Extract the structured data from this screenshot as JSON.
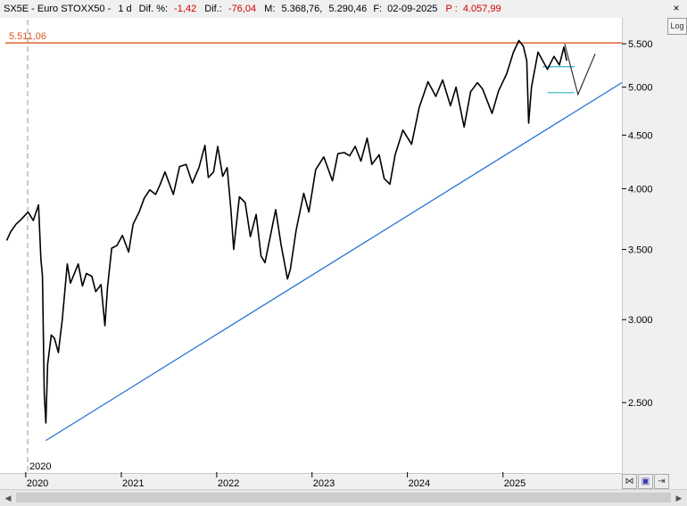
{
  "header": {
    "symbol": "SX5E - Euro STOXX50 -",
    "period": "1 d",
    "dif_pct_label": "Dif. %:",
    "dif_pct_value": "-1,42",
    "dif_label": "Dif.:",
    "dif_value": "-76,04",
    "max_label": "M:",
    "max_value": "5.368,76",
    "min_value": "5.290,46",
    "date_label": "F:",
    "date_value": "02-09-2025",
    "p_label": "P :",
    "p_value": "4.057,99",
    "close_icon": "close-icon"
  },
  "log_button": "Log",
  "toolbar": {
    "icons": [
      "chart-mode-icon",
      "save-icon",
      "export-icon"
    ]
  },
  "colors": {
    "price": "#000000",
    "resistance": "#d9571b",
    "trendline": "#1f6fd1",
    "target": "#2bb3c0",
    "header_red": "#d00000"
  },
  "chart_data": {
    "type": "line",
    "title": "",
    "y_scale": "log",
    "ylim": [
      2150,
      5800
    ],
    "y_ticks": [
      2500,
      3000,
      3500,
      4000,
      4500,
      5000,
      5500
    ],
    "y_tick_labels": [
      "2.500",
      "3.000",
      "3.500",
      "4.000",
      "4.500",
      "5.000",
      "5.500"
    ],
    "x_tick_labels": [
      "2020",
      "2021",
      "2022",
      "2023",
      "2024",
      "2025"
    ],
    "x_start_label": "2020",
    "xlim": [
      "2019-10-15",
      "2026-04-01"
    ],
    "x_ticks": [
      "2020-01-01",
      "2021-01-01",
      "2022-01-01",
      "2023-01-01",
      "2024-01-01",
      "2025-01-01"
    ],
    "resistance": {
      "value": 5511.06,
      "label": "5.511,06"
    },
    "trendline": {
      "from": [
        "2020-03-18",
        2300
      ],
      "to": [
        "2026-04-01",
        5050
      ]
    },
    "projection": [
      [
        "2025-08-25",
        5500
      ],
      [
        "2025-10-15",
        4920
      ],
      [
        "2025-12-20",
        5380
      ]
    ],
    "targets": [
      {
        "from": "2025-06-01",
        "to": "2025-10-01",
        "value": 5230
      },
      {
        "from": "2025-06-20",
        "to": "2025-10-01",
        "value": 4940
      }
    ],
    "series": [
      {
        "values": [
          [
            "2019-10-20",
            3570
          ],
          [
            "2019-11-05",
            3640
          ],
          [
            "2019-11-25",
            3700
          ],
          [
            "2019-12-15",
            3740
          ],
          [
            "2020-01-10",
            3800
          ],
          [
            "2020-01-30",
            3730
          ],
          [
            "2020-02-19",
            3860
          ],
          [
            "2020-02-28",
            3430
          ],
          [
            "2020-03-05",
            3300
          ],
          [
            "2020-03-12",
            2550
          ],
          [
            "2020-03-18",
            2390
          ],
          [
            "2020-03-25",
            2720
          ],
          [
            "2020-04-08",
            2900
          ],
          [
            "2020-04-20",
            2880
          ],
          [
            "2020-05-05",
            2790
          ],
          [
            "2020-05-20",
            3000
          ],
          [
            "2020-06-08",
            3390
          ],
          [
            "2020-06-20",
            3250
          ],
          [
            "2020-07-20",
            3390
          ],
          [
            "2020-08-05",
            3230
          ],
          [
            "2020-08-20",
            3320
          ],
          [
            "2020-09-10",
            3300
          ],
          [
            "2020-09-25",
            3190
          ],
          [
            "2020-10-15",
            3240
          ],
          [
            "2020-10-30",
            2960
          ],
          [
            "2020-11-09",
            3220
          ],
          [
            "2020-11-25",
            3510
          ],
          [
            "2020-12-15",
            3530
          ],
          [
            "2021-01-05",
            3610
          ],
          [
            "2021-01-29",
            3480
          ],
          [
            "2021-02-15",
            3700
          ],
          [
            "2021-03-10",
            3800
          ],
          [
            "2021-03-30",
            3920
          ],
          [
            "2021-04-20",
            3990
          ],
          [
            "2021-05-12",
            3950
          ],
          [
            "2021-05-30",
            4040
          ],
          [
            "2021-06-17",
            4150
          ],
          [
            "2021-07-19",
            3950
          ],
          [
            "2021-08-12",
            4200
          ],
          [
            "2021-09-06",
            4220
          ],
          [
            "2021-09-30",
            4050
          ],
          [
            "2021-10-25",
            4190
          ],
          [
            "2021-11-17",
            4400
          ],
          [
            "2021-11-30",
            4100
          ],
          [
            "2021-12-20",
            4150
          ],
          [
            "2022-01-05",
            4390
          ],
          [
            "2022-01-24",
            4110
          ],
          [
            "2022-02-10",
            4190
          ],
          [
            "2022-02-24",
            3830
          ],
          [
            "2022-03-07",
            3500
          ],
          [
            "2022-03-29",
            3930
          ],
          [
            "2022-04-20",
            3880
          ],
          [
            "2022-05-10",
            3600
          ],
          [
            "2022-06-01",
            3780
          ],
          [
            "2022-06-20",
            3450
          ],
          [
            "2022-07-05",
            3400
          ],
          [
            "2022-08-15",
            3820
          ],
          [
            "2022-09-05",
            3530
          ],
          [
            "2022-09-29",
            3280
          ],
          [
            "2022-10-10",
            3350
          ],
          [
            "2022-11-01",
            3650
          ],
          [
            "2022-11-30",
            3960
          ],
          [
            "2022-12-20",
            3800
          ],
          [
            "2023-01-15",
            4170
          ],
          [
            "2023-02-15",
            4290
          ],
          [
            "2023-03-20",
            4070
          ],
          [
            "2023-04-10",
            4320
          ],
          [
            "2023-05-04",
            4330
          ],
          [
            "2023-05-25",
            4300
          ],
          [
            "2023-06-15",
            4390
          ],
          [
            "2023-07-07",
            4250
          ],
          [
            "2023-07-31",
            4470
          ],
          [
            "2023-08-18",
            4220
          ],
          [
            "2023-09-15",
            4310
          ],
          [
            "2023-10-04",
            4090
          ],
          [
            "2023-10-26",
            4040
          ],
          [
            "2023-11-15",
            4310
          ],
          [
            "2023-12-15",
            4550
          ],
          [
            "2024-01-17",
            4410
          ],
          [
            "2024-02-15",
            4780
          ],
          [
            "2024-03-20",
            5060
          ],
          [
            "2024-04-19",
            4900
          ],
          [
            "2024-05-15",
            5080
          ],
          [
            "2024-06-14",
            4800
          ],
          [
            "2024-07-05",
            5000
          ],
          [
            "2024-08-05",
            4580
          ],
          [
            "2024-08-30",
            4950
          ],
          [
            "2024-09-25",
            5050
          ],
          [
            "2024-10-15",
            4980
          ],
          [
            "2024-11-20",
            4720
          ],
          [
            "2024-12-15",
            4960
          ],
          [
            "2025-01-15",
            5150
          ],
          [
            "2025-02-10",
            5400
          ],
          [
            "2025-03-03",
            5540
          ],
          [
            "2025-03-20",
            5470
          ],
          [
            "2025-04-02",
            5300
          ],
          [
            "2025-04-09",
            4620
          ],
          [
            "2025-04-20",
            5000
          ],
          [
            "2025-05-15",
            5400
          ],
          [
            "2025-06-20",
            5200
          ],
          [
            "2025-07-15",
            5350
          ],
          [
            "2025-08-05",
            5250
          ],
          [
            "2025-08-22",
            5460
          ],
          [
            "2025-09-02",
            5300
          ]
        ]
      }
    ]
  }
}
